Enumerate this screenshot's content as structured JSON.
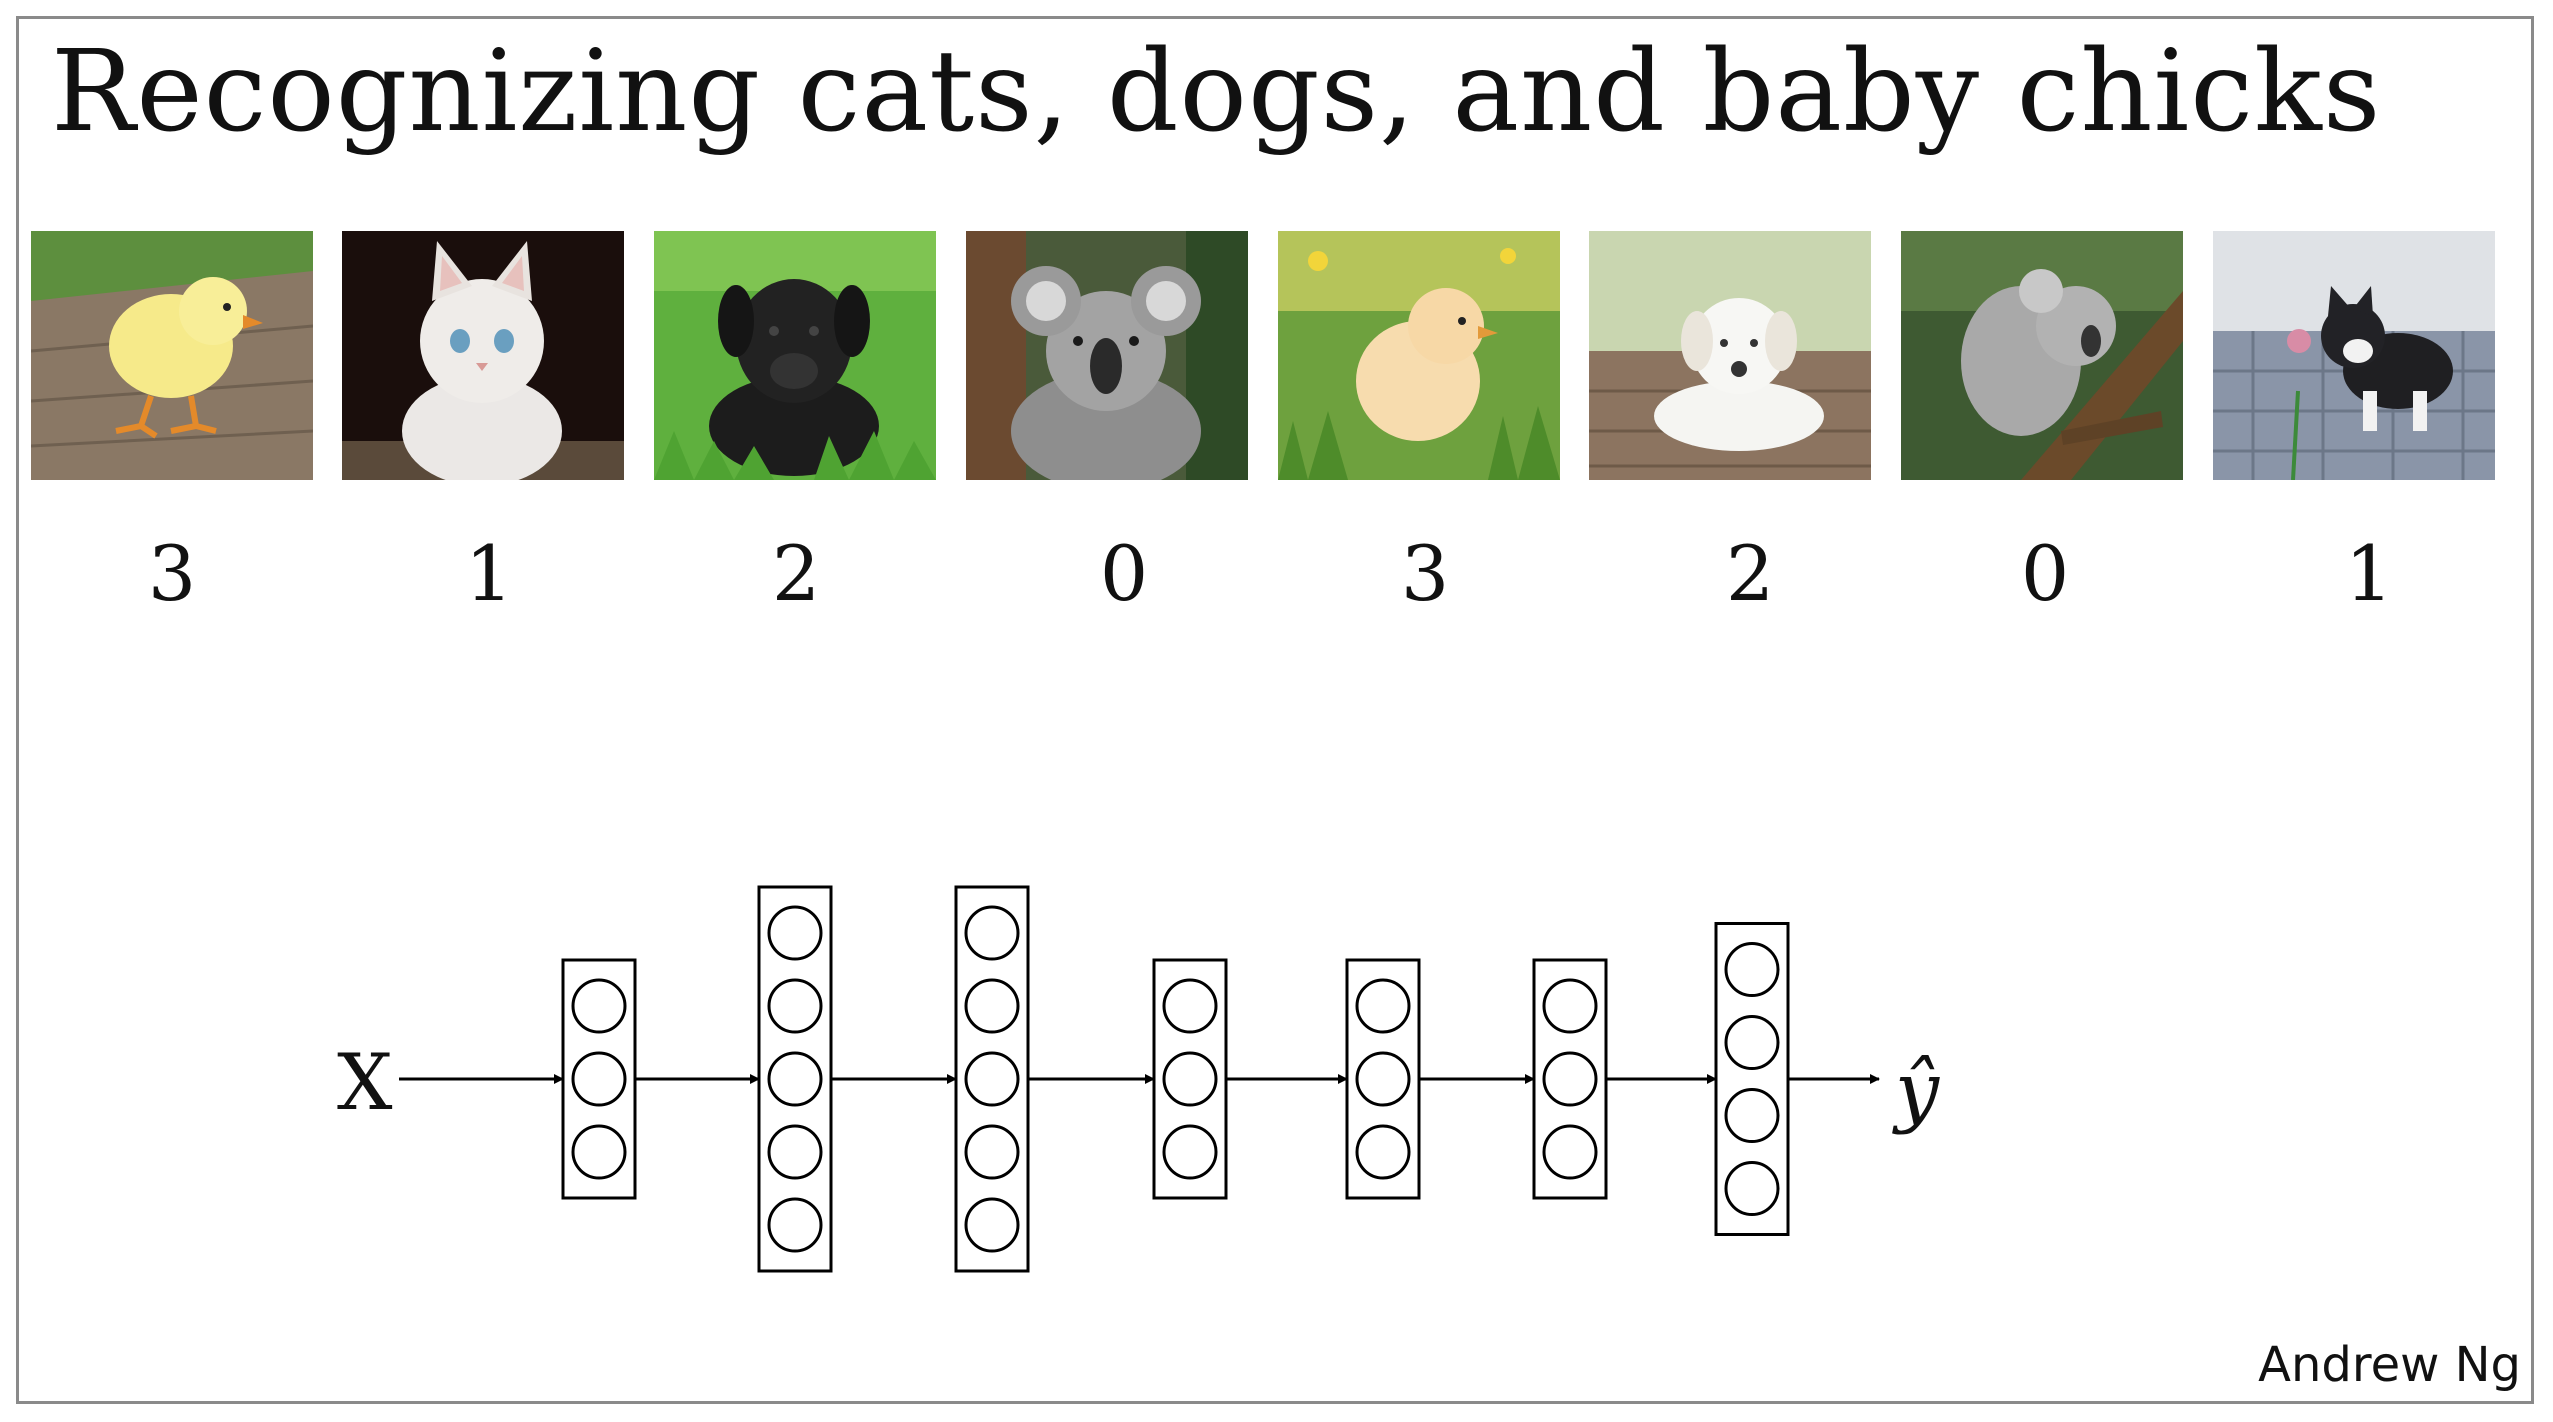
{
  "slide": {
    "title": "Recognizing cats, dogs, and baby chicks",
    "author": "Andrew Ng"
  },
  "examples": [
    {
      "subject": "chick",
      "label": "3"
    },
    {
      "subject": "cat",
      "label": "1"
    },
    {
      "subject": "dog",
      "label": "2"
    },
    {
      "subject": "koala",
      "label": "0"
    },
    {
      "subject": "chick",
      "label": "3"
    },
    {
      "subject": "dog",
      "label": "2"
    },
    {
      "subject": "koala",
      "label": "0"
    },
    {
      "subject": "cat",
      "label": "1"
    }
  ],
  "network": {
    "input_label": "X",
    "output_label": "ŷ",
    "layer_sizes": [
      3,
      5,
      5,
      3,
      3,
      3,
      4
    ]
  },
  "colors": {
    "text": "#111111",
    "frame": "#8a8a8a",
    "line": "#000000"
  }
}
